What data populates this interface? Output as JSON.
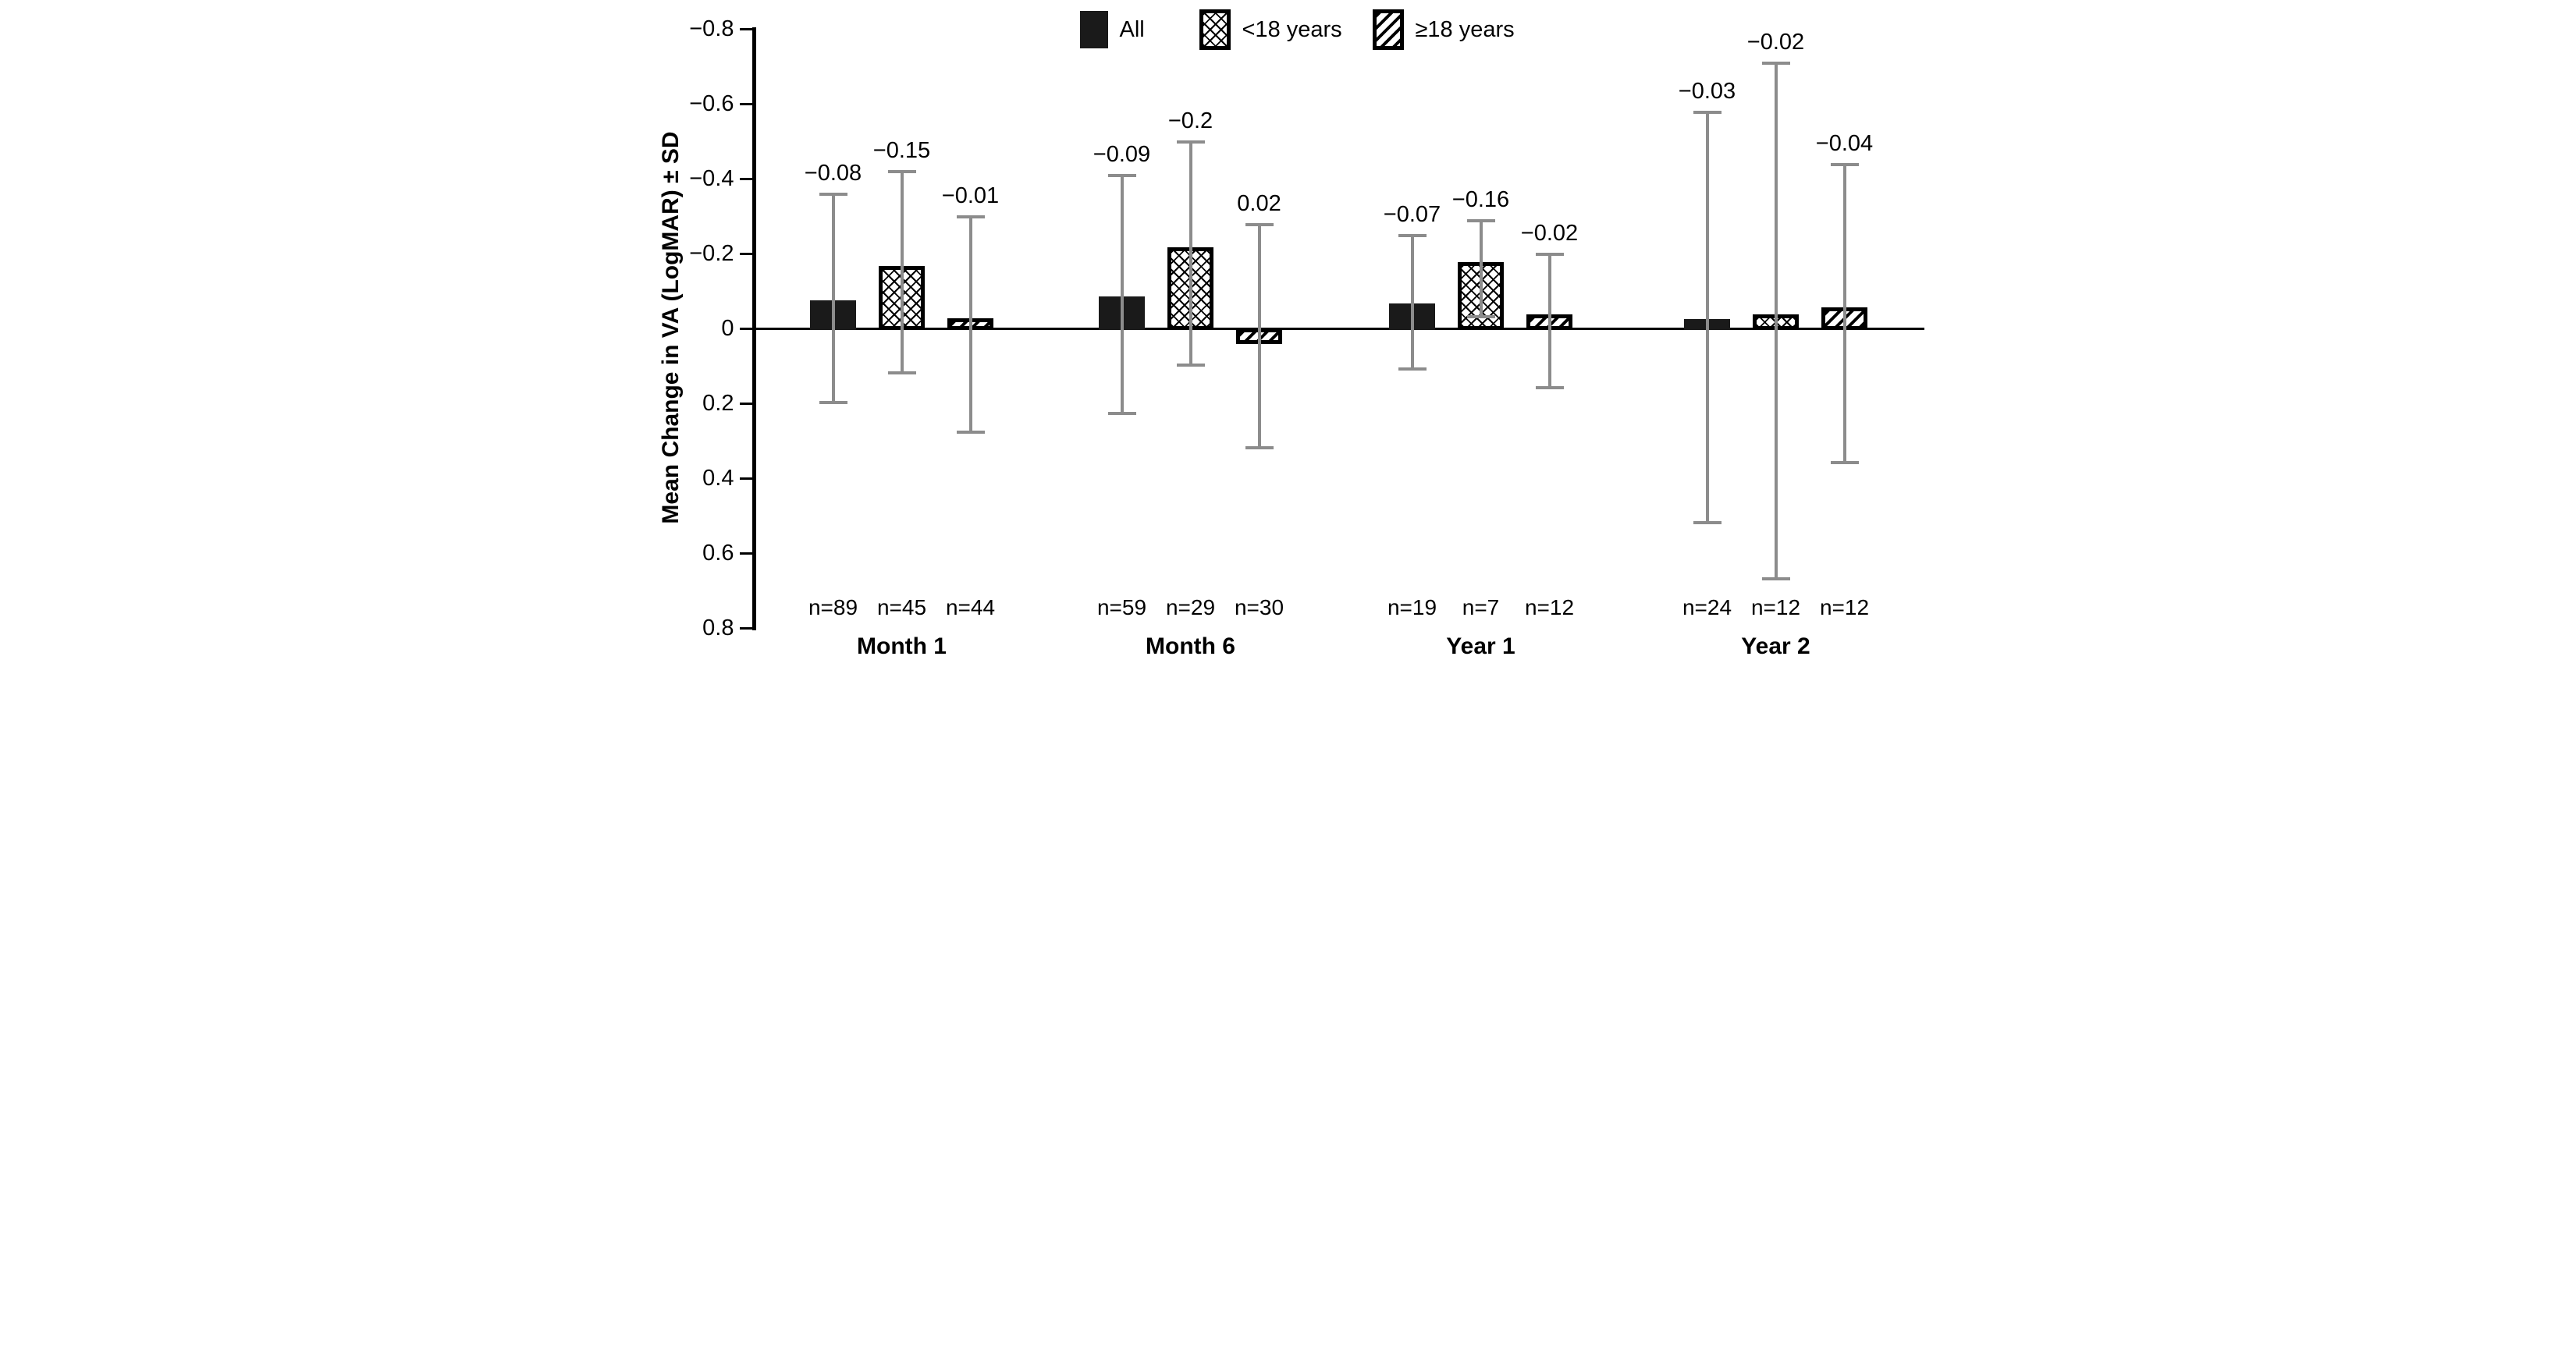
{
  "figure": {
    "background": "#ffffff",
    "colors": {
      "bar_fill": "#000000",
      "error_bar": "#8c8c8c",
      "text": "#000000"
    }
  },
  "chart_data": {
    "type": "bar",
    "title": "",
    "xlabel": "",
    "ylabel": "Mean Change in VA (LogMAR) ± SD",
    "y_axis": {
      "min": -0.8,
      "max": 0.8,
      "step": 0.2,
      "inverted_negative_up": true,
      "tick_labels": [
        "−0.8",
        "−0.6",
        "−0.4",
        "−0.2",
        "0",
        "0.2",
        "0.4",
        "0.6",
        "0.8"
      ]
    },
    "legend": [
      {
        "label": "All",
        "pattern": "solid"
      },
      {
        "label": "<18 years",
        "pattern": "crosshatch"
      },
      {
        "label": "≥18 years",
        "pattern": "diagonal"
      }
    ],
    "categories": [
      "Month 1",
      "Month 6",
      "Year 1",
      "Year 2"
    ],
    "error_bar_meaning": "±SD",
    "groups": [
      {
        "label": "Month 1",
        "bars": [
          {
            "series": "All",
            "pattern": "solid",
            "mean": -0.08,
            "value_label": "−0.08",
            "sd": 0.28,
            "err_low": -0.36,
            "err_high": 0.2,
            "n_label": "n=89"
          },
          {
            "series": "<18 years",
            "pattern": "crosshatch",
            "mean": -0.15,
            "value_label": "−0.15",
            "sd": 0.27,
            "err_low": -0.42,
            "err_high": 0.12,
            "n_label": "n=45"
          },
          {
            "series": "≥18 years",
            "pattern": "diagonal",
            "mean": -0.01,
            "value_label": "−0.01",
            "sd": 0.29,
            "err_low": -0.3,
            "err_high": 0.28,
            "n_label": "n=44"
          }
        ]
      },
      {
        "label": "Month 6",
        "bars": [
          {
            "series": "All",
            "pattern": "solid",
            "mean": -0.09,
            "value_label": "−0.09",
            "sd": 0.32,
            "err_low": -0.41,
            "err_high": 0.23,
            "n_label": "n=59"
          },
          {
            "series": "<18 years",
            "pattern": "crosshatch",
            "mean": -0.2,
            "value_label": "−0.2",
            "sd": 0.3,
            "err_low": -0.5,
            "err_high": 0.1,
            "n_label": "n=29"
          },
          {
            "series": "≥18 years",
            "pattern": "diagonal",
            "mean": 0.02,
            "value_label": "0.02",
            "sd": 0.3,
            "err_low": -0.28,
            "err_high": 0.32,
            "n_label": "n=30"
          }
        ]
      },
      {
        "label": "Year 1",
        "bars": [
          {
            "series": "All",
            "pattern": "solid",
            "mean": -0.07,
            "value_label": "−0.07",
            "sd": 0.18,
            "err_low": -0.25,
            "err_high": 0.11,
            "n_label": "n=19"
          },
          {
            "series": "<18 years",
            "pattern": "crosshatch",
            "mean": -0.16,
            "value_label": "−0.16",
            "sd": 0.13,
            "err_low": -0.29,
            "err_high": -0.03,
            "n_label": "n=7"
          },
          {
            "series": "≥18 years",
            "pattern": "diagonal",
            "mean": -0.02,
            "value_label": "−0.02",
            "sd": 0.18,
            "err_low": -0.2,
            "err_high": 0.16,
            "n_label": "n=12"
          }
        ]
      },
      {
        "label": "Year 2",
        "bars": [
          {
            "series": "All",
            "pattern": "solid",
            "mean": -0.03,
            "value_label": "−0.03",
            "sd": 0.55,
            "err_low": -0.58,
            "err_high": 0.52,
            "n_label": "n=24"
          },
          {
            "series": "<18 years",
            "pattern": "crosshatch",
            "mean": -0.02,
            "value_label": "−0.02",
            "sd": 0.69,
            "err_low": -0.71,
            "err_high": 0.67,
            "n_label": "n=12"
          },
          {
            "series": "≥18 years",
            "pattern": "diagonal",
            "mean": -0.04,
            "value_label": "−0.04",
            "sd": 0.4,
            "err_low": -0.44,
            "err_high": 0.36,
            "n_label": "n=12"
          }
        ]
      }
    ]
  }
}
